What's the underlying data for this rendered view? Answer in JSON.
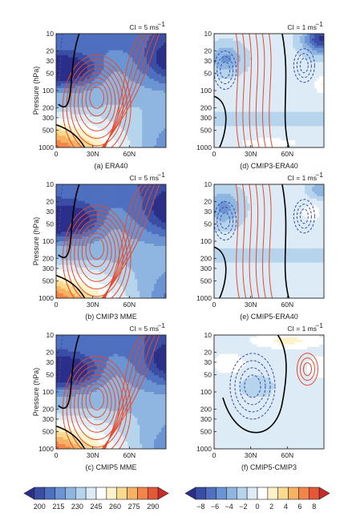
{
  "colors": {
    "temperature_scale": [
      "#2b2f8a",
      "#3a4ea6",
      "#4f6fbf",
      "#6b94d2",
      "#8eb6e0",
      "#b6d4ec",
      "#dcebf5",
      "#ffffff",
      "#fdf2c9",
      "#fbd98d",
      "#f8b264",
      "#f3854a",
      "#e45737",
      "#c92a2a"
    ],
    "anomaly_scale": [
      "#2b2f8a",
      "#3a4ea6",
      "#4f6fbf",
      "#6b94d2",
      "#8eb6e0",
      "#b6d4ec",
      "#dcebf5",
      "#ffffff",
      "#fdf2c9",
      "#fbd98d",
      "#f8b264",
      "#f3854a",
      "#e45737",
      "#c92a2a"
    ],
    "contour_positive": "#e8492a",
    "contour_negative": "#3b4aa8",
    "zero_contour": "#000000"
  },
  "chart_data": [
    {
      "id": "a",
      "type": "heatmap",
      "caption": "(a) ERA40",
      "ci_label": "CI = 5 ms",
      "ci_exp": "−1",
      "ylabel": "Pressure (hPa)",
      "yticks": [
        "10",
        "20",
        "30",
        "50",
        "100",
        "200",
        "300",
        "500",
        "1000"
      ],
      "xticks": [
        "0",
        "30N",
        "60N"
      ],
      "field": "temperature",
      "x_range": [
        0,
        90
      ],
      "y_range_hPa": [
        1000,
        10
      ]
    },
    {
      "id": "d",
      "type": "heatmap",
      "caption": "(d) CMIP3-ERA40",
      "ci_label": "CI = 1 ms",
      "ci_exp": "−1",
      "ylabel": "",
      "yticks": [
        "10",
        "20",
        "30",
        "50",
        "100",
        "200",
        "300",
        "500",
        "1000"
      ],
      "xticks": [
        "0",
        "30N",
        "60N"
      ],
      "field": "anomaly",
      "x_range": [
        0,
        90
      ],
      "y_range_hPa": [
        1000,
        10
      ]
    },
    {
      "id": "b",
      "type": "heatmap",
      "caption": "(b) CMIP3 MME",
      "ci_label": "CI = 5 ms",
      "ci_exp": "−1",
      "ylabel": "Pressure (hPa)",
      "yticks": [
        "10",
        "20",
        "30",
        "50",
        "100",
        "200",
        "300",
        "500",
        "1000"
      ],
      "xticks": [
        "0",
        "30N",
        "60N"
      ],
      "field": "temperature",
      "x_range": [
        0,
        90
      ],
      "y_range_hPa": [
        1000,
        10
      ]
    },
    {
      "id": "e",
      "type": "heatmap",
      "caption": "(e) CMIP5-ERA40",
      "ci_label": "CI = 1 ms",
      "ci_exp": "−1",
      "ylabel": "",
      "yticks": [
        "10",
        "20",
        "30",
        "50",
        "100",
        "200",
        "300",
        "500",
        "1000"
      ],
      "xticks": [
        "0",
        "30N",
        "60N"
      ],
      "field": "anomaly",
      "x_range": [
        0,
        90
      ],
      "y_range_hPa": [
        1000,
        10
      ]
    },
    {
      "id": "c",
      "type": "heatmap",
      "caption": "(c) CMIP5 MME",
      "ci_label": "CI = 5 ms",
      "ci_exp": "−1",
      "ylabel": "Pressure (hPa)",
      "yticks": [
        "10",
        "20",
        "30",
        "50",
        "100",
        "200",
        "300",
        "500",
        "1000"
      ],
      "xticks": [
        "0",
        "30N",
        "60N"
      ],
      "field": "temperature",
      "x_range": [
        0,
        90
      ],
      "y_range_hPa": [
        1000,
        10
      ]
    },
    {
      "id": "f",
      "type": "heatmap",
      "caption": "(f) CMIP5-CMIP3",
      "ci_label": "CI = 1 ms",
      "ci_exp": "−1",
      "ylabel": "",
      "yticks": [
        "10",
        "20",
        "30",
        "50",
        "100",
        "200",
        "300",
        "500",
        "1000"
      ],
      "xticks": [
        "0",
        "30N",
        "60N"
      ],
      "field": "anomaly",
      "x_range": [
        0,
        90
      ],
      "y_range_hPa": [
        1000,
        10
      ]
    }
  ],
  "colorbars": [
    {
      "id": "temperature",
      "ticks": [
        "200",
        "215",
        "230",
        "245",
        "260",
        "275",
        "290"
      ],
      "range": [
        185,
        305
      ],
      "step": 7.5
    },
    {
      "id": "anomaly",
      "ticks": [
        "−8",
        "−6",
        "−4",
        "−2",
        "0",
        "2",
        "4",
        "6",
        "8"
      ],
      "range": [
        -9,
        9
      ],
      "step": 1.25
    }
  ]
}
